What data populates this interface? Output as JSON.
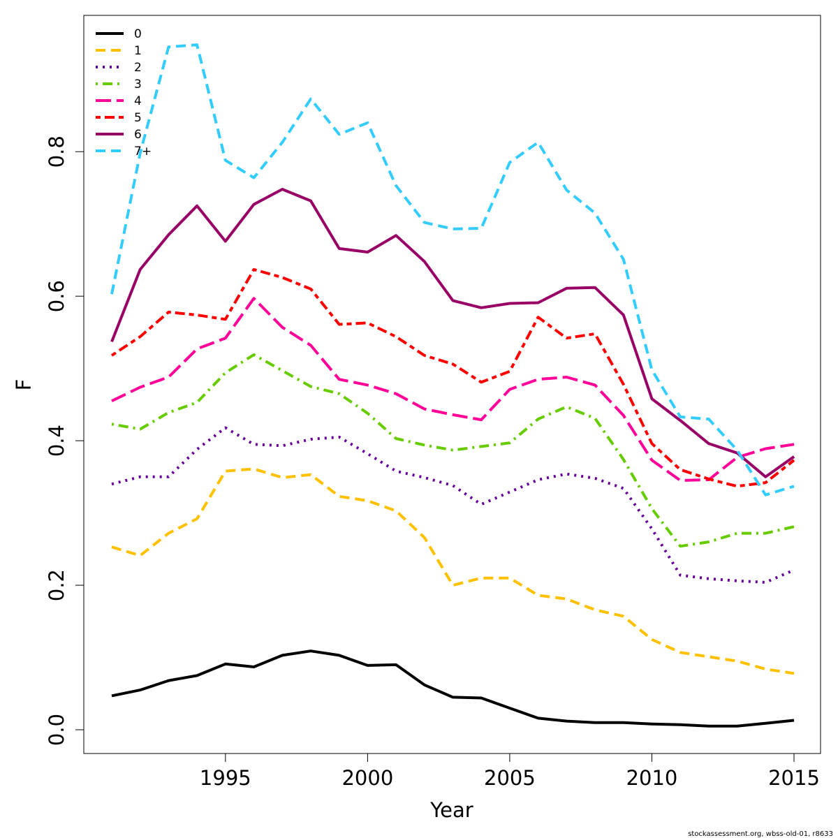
{
  "footer": "stockassessment.org, wbss-old-01, r8633",
  "chart_data": {
    "type": "line",
    "xlabel": "Year",
    "ylabel": "F",
    "xlim": [
      1991,
      2015
    ],
    "ylim": [
      0,
      0.95
    ],
    "xticks": [
      1995,
      2000,
      2005,
      2010,
      2015
    ],
    "yticks": [
      0.0,
      0.2,
      0.4,
      0.6,
      0.8
    ],
    "ytick_labels": [
      "0.0",
      "0.2",
      "0.4",
      "0.6",
      "0.8"
    ],
    "grid": false,
    "legend_position": "top-left",
    "x": [
      1991,
      1992,
      1993,
      1994,
      1995,
      1996,
      1997,
      1998,
      1999,
      2000,
      2001,
      2002,
      2003,
      2004,
      2005,
      2006,
      2007,
      2008,
      2009,
      2010,
      2011,
      2012,
      2013,
      2014,
      2015
    ],
    "series": [
      {
        "name": "0",
        "color": "#000000",
        "dash": "solid",
        "values": [
          0.047,
          0.055,
          0.068,
          0.075,
          0.091,
          0.087,
          0.103,
          0.109,
          0.103,
          0.089,
          0.09,
          0.062,
          0.045,
          0.044,
          0.03,
          0.016,
          0.012,
          0.01,
          0.01,
          0.008,
          0.007,
          0.005,
          0.005,
          0.009,
          0.013
        ]
      },
      {
        "name": "1",
        "color": "#ffc000",
        "dash": "dashed",
        "values": [
          0.253,
          0.241,
          0.272,
          0.292,
          0.358,
          0.361,
          0.349,
          0.353,
          0.323,
          0.317,
          0.303,
          0.266,
          0.2,
          0.21,
          0.21,
          0.186,
          0.181,
          0.166,
          0.157,
          0.125,
          0.107,
          0.101,
          0.095,
          0.084,
          0.078
        ]
      },
      {
        "name": "2",
        "color": "#660099",
        "dash": "dotted",
        "values": [
          0.34,
          0.35,
          0.35,
          0.388,
          0.418,
          0.395,
          0.393,
          0.402,
          0.405,
          0.382,
          0.358,
          0.349,
          0.338,
          0.312,
          0.329,
          0.346,
          0.354,
          0.348,
          0.334,
          0.278,
          0.214,
          0.209,
          0.206,
          0.204,
          0.221
        ]
      },
      {
        "name": "3",
        "color": "#66cc00",
        "dash": "dotdash",
        "values": [
          0.423,
          0.416,
          0.439,
          0.453,
          0.494,
          0.519,
          0.497,
          0.475,
          0.465,
          0.438,
          0.403,
          0.394,
          0.387,
          0.392,
          0.397,
          0.43,
          0.447,
          0.431,
          0.374,
          0.306,
          0.254,
          0.26,
          0.272,
          0.272,
          0.281
        ]
      },
      {
        "name": "4",
        "color": "#ff0099",
        "dash": "longdash",
        "values": [
          0.455,
          0.474,
          0.488,
          0.527,
          0.542,
          0.597,
          0.557,
          0.532,
          0.485,
          0.477,
          0.465,
          0.444,
          0.436,
          0.429,
          0.471,
          0.485,
          0.488,
          0.477,
          0.435,
          0.373,
          0.345,
          0.346,
          0.377,
          0.389,
          0.395
        ]
      },
      {
        "name": "5",
        "color": "#ff0000",
        "dash": "twodash",
        "values": [
          0.518,
          0.544,
          0.578,
          0.574,
          0.568,
          0.637,
          0.626,
          0.61,
          0.561,
          0.563,
          0.544,
          0.518,
          0.506,
          0.481,
          0.496,
          0.571,
          0.542,
          0.548,
          0.478,
          0.396,
          0.36,
          0.347,
          0.337,
          0.342,
          0.373
        ]
      },
      {
        "name": "6",
        "color": "#990066",
        "dash": "solid",
        "values": [
          0.537,
          0.637,
          0.685,
          0.725,
          0.676,
          0.727,
          0.748,
          0.732,
          0.666,
          0.661,
          0.684,
          0.648,
          0.594,
          0.584,
          0.59,
          0.591,
          0.611,
          0.612,
          0.574,
          0.458,
          0.428,
          0.396,
          0.383,
          0.35,
          0.378
        ]
      },
      {
        "name": "7+",
        "color": "#33ccff",
        "dash": "dashed",
        "values": [
          0.603,
          0.798,
          0.945,
          0.948,
          0.788,
          0.764,
          0.813,
          0.873,
          0.824,
          0.84,
          0.753,
          0.702,
          0.693,
          0.694,
          0.785,
          0.813,
          0.747,
          0.715,
          0.651,
          0.498,
          0.433,
          0.43,
          0.387,
          0.325,
          0.337
        ]
      }
    ]
  }
}
